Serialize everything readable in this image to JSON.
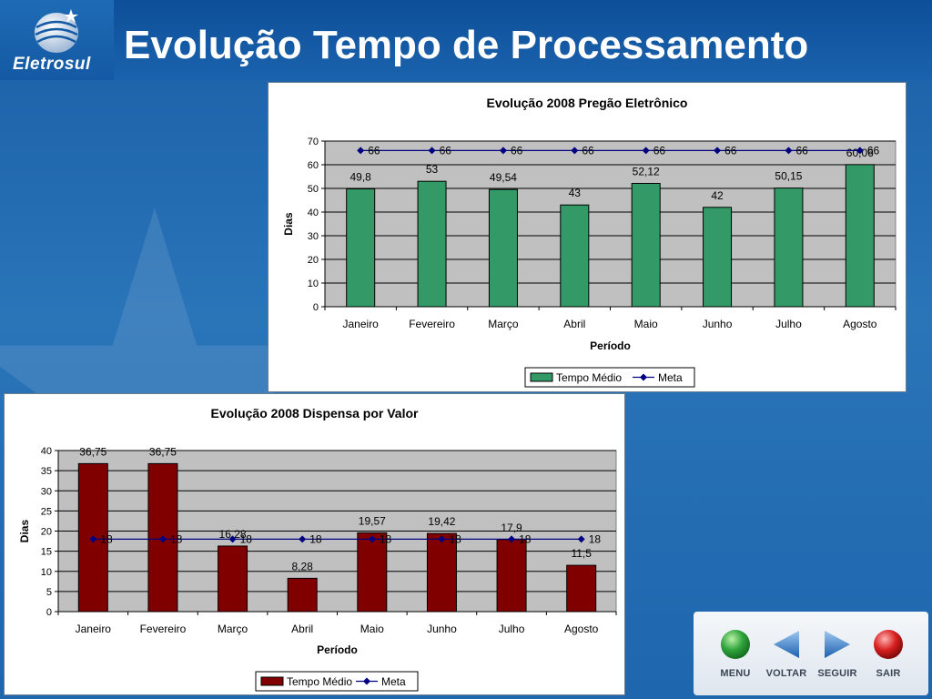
{
  "header": {
    "title": "Evolução Tempo de Processamento",
    "logo_text": "Eletrosul"
  },
  "nav": [
    {
      "label": "MENU",
      "icon": "green-ball-icon"
    },
    {
      "label": "VOLTAR",
      "icon": "triangle-left-icon"
    },
    {
      "label": "SEGUIR",
      "icon": "triangle-right-icon"
    },
    {
      "label": "SAIR",
      "icon": "red-ball-icon"
    }
  ],
  "colors": {
    "chart1_bar": "#339966",
    "chart2_bar": "#800000",
    "meta_line": "#000080",
    "plot_bg": "#c0c0c0"
  },
  "chart_data": [
    {
      "type": "bar",
      "title": "Evolução 2008 Pregão Eletrônico",
      "xlabel": "Período",
      "ylabel": "Dias",
      "ylim": [
        0,
        70
      ],
      "yticks": [
        0,
        10,
        20,
        30,
        40,
        50,
        60,
        70
      ],
      "grid": true,
      "legend": "bottom",
      "categories": [
        "Janeiro",
        "Fevereiro",
        "Março",
        "Abril",
        "Maio",
        "Junho",
        "Julho",
        "Agosto"
      ],
      "series": [
        {
          "name": "Tempo Médio",
          "kind": "bar",
          "values": [
            49.8,
            53,
            49.54,
            43,
            52.12,
            42,
            50.15,
            60.06
          ],
          "labels": [
            "49,8",
            "53",
            "49,54",
            "43",
            "52,12",
            "42",
            "50,15",
            "60,06"
          ]
        },
        {
          "name": "Meta",
          "kind": "line",
          "values": [
            66,
            66,
            66,
            66,
            66,
            66,
            66,
            66
          ],
          "labels": [
            "66",
            "66",
            "66",
            "66",
            "66",
            "66",
            "66",
            "66"
          ]
        }
      ]
    },
    {
      "type": "bar",
      "title": "Evolução 2008 Dispensa por Valor",
      "xlabel": "Período",
      "ylabel": "Dias",
      "ylim": [
        0,
        40
      ],
      "yticks": [
        0,
        5,
        10,
        15,
        20,
        25,
        30,
        35,
        40
      ],
      "grid": true,
      "legend": "bottom",
      "categories": [
        "Janeiro",
        "Fevereiro",
        "Março",
        "Abril",
        "Maio",
        "Junho",
        "Julho",
        "Agosto"
      ],
      "series": [
        {
          "name": "Tempo Médio",
          "kind": "bar",
          "values": [
            36.75,
            36.75,
            16.28,
            8.28,
            19.57,
            19.42,
            17.9,
            11.5
          ],
          "labels": [
            "36,75",
            "36,75",
            "16,28",
            "8,28",
            "19,57",
            "19,42",
            "17,9",
            "11,5"
          ]
        },
        {
          "name": "Meta",
          "kind": "line",
          "values": [
            18,
            18,
            18,
            18,
            18,
            18,
            18,
            18
          ],
          "labels": [
            "18",
            "18",
            "18",
            "18",
            "18",
            "18",
            "18",
            "18"
          ]
        }
      ]
    }
  ]
}
